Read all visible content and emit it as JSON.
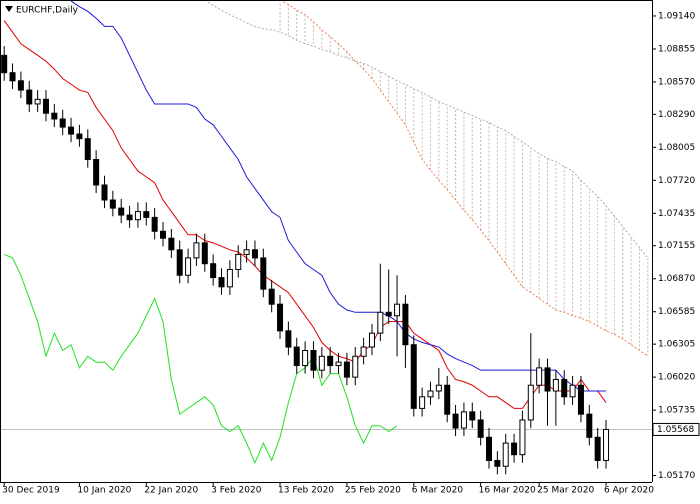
{
  "chart_data": {
    "type": "candlestick",
    "title": "EURCHF,Daily",
    "categories": [
      "30 Dec 2019",
      null,
      null,
      null,
      null,
      null,
      null,
      null,
      null,
      "10 Jan 2020",
      null,
      null,
      null,
      null,
      null,
      null,
      null,
      "22 Jan 2020",
      null,
      null,
      null,
      null,
      null,
      null,
      null,
      "3 Feb 2020",
      null,
      null,
      null,
      null,
      null,
      null,
      null,
      "13 Feb 2020",
      null,
      null,
      null,
      null,
      null,
      null,
      null,
      "25 Feb 2020",
      null,
      null,
      null,
      null,
      null,
      null,
      null,
      "6 Mar 2020",
      null,
      null,
      null,
      null,
      null,
      null,
      null,
      "16 Mar 2020",
      null,
      null,
      null,
      null,
      null,
      null,
      "25 Mar 2020",
      null,
      null,
      null,
      null,
      null,
      null,
      null,
      "6 Apr 2020",
      null,
      null,
      null,
      null,
      null
    ],
    "open": [
      1.088,
      1.0865,
      1.0858,
      1.085,
      1.0838,
      1.0842,
      1.083,
      1.0825,
      1.0818,
      1.0812,
      1.0808,
      1.079,
      1.0768,
      1.0755,
      1.0748,
      1.0742,
      1.0738,
      1.0745,
      1.074,
      1.0728,
      1.0722,
      1.0712,
      1.069,
      1.0705,
      1.0718,
      1.07,
      1.0688,
      1.068,
      1.0695,
      1.0708,
      1.0712,
      1.0705,
      1.0678,
      1.0665,
      1.0642,
      1.0628,
      1.0612,
      1.0625,
      1.0608,
      1.062,
      1.0612,
      1.0615,
      1.0602,
      1.062,
      1.0628,
      1.064,
      1.0658,
      1.0655,
      1.0665,
      1.063,
      1.0575,
      1.0585,
      1.059,
      1.0595,
      1.057,
      1.0558,
      1.0572,
      1.0565,
      1.055,
      1.053,
      1.0525,
      1.0545,
      1.0535,
      1.0565,
      1.0595,
      1.061,
      1.059,
      1.06,
      1.0585,
      1.0595,
      1.057,
      1.055,
      1.053,
      null,
      null,
      null,
      null,
      null
    ],
    "high": [
      1.0888,
      1.0873,
      1.0866,
      1.0858,
      1.085,
      1.085,
      1.0838,
      1.0833,
      1.0826,
      1.082,
      1.0816,
      1.0798,
      1.0776,
      1.0763,
      1.0756,
      1.075,
      1.0753,
      1.0753,
      1.0748,
      1.0736,
      1.073,
      1.072,
      1.0713,
      1.0726,
      1.0726,
      1.0708,
      1.0696,
      1.0703,
      1.0716,
      1.072,
      1.072,
      1.0713,
      1.0686,
      1.0673,
      1.065,
      1.0636,
      1.0633,
      1.0633,
      1.0628,
      1.0628,
      1.0623,
      1.0623,
      1.0628,
      1.0636,
      1.0648,
      1.07,
      1.0695,
      1.069,
      1.0673,
      1.0638,
      1.0593,
      1.0598,
      1.061,
      1.0603,
      1.0578,
      1.058,
      1.058,
      1.0573,
      1.0558,
      1.0538,
      1.0553,
      1.0553,
      1.0573,
      1.064,
      1.0618,
      1.0618,
      1.0608,
      1.0608,
      1.0603,
      1.0603,
      1.0578,
      1.0558,
      1.0565,
      null,
      null,
      null,
      null,
      null
    ],
    "low": [
      1.0858,
      1.0851,
      1.0843,
      1.0831,
      1.0831,
      1.0823,
      1.0818,
      1.0811,
      1.0805,
      1.0801,
      1.0783,
      1.0761,
      1.0748,
      1.0741,
      1.0735,
      1.0731,
      1.0731,
      1.0733,
      1.0721,
      1.0715,
      1.0705,
      1.0683,
      1.0683,
      1.0698,
      1.0693,
      1.0681,
      1.0673,
      1.0673,
      1.0688,
      1.0701,
      1.0698,
      1.0671,
      1.0658,
      1.0635,
      1.0621,
      1.0605,
      1.0605,
      1.0601,
      1.0601,
      1.0605,
      1.0605,
      1.0595,
      1.0595,
      1.0613,
      1.0621,
      1.0633,
      1.0648,
      1.062,
      1.061,
      1.0568,
      1.0568,
      1.0578,
      1.0583,
      1.0563,
      1.0551,
      1.0551,
      1.0558,
      1.0543,
      1.0523,
      1.0518,
      1.0518,
      1.0528,
      1.0528,
      1.0558,
      1.0588,
      1.056,
      1.056,
      1.0578,
      1.0578,
      1.0563,
      1.0543,
      1.0523,
      1.0523,
      null,
      null,
      null,
      null,
      null
    ],
    "close": [
      1.0865,
      1.0858,
      1.085,
      1.0838,
      1.0842,
      1.083,
      1.0825,
      1.0818,
      1.0812,
      1.0808,
      1.079,
      1.0768,
      1.0755,
      1.0748,
      1.0742,
      1.0738,
      1.0745,
      1.074,
      1.0728,
      1.0722,
      1.0712,
      1.069,
      1.0705,
      1.0718,
      1.07,
      1.0688,
      1.068,
      1.0695,
      1.0708,
      1.0712,
      1.0705,
      1.0678,
      1.0665,
      1.0642,
      1.0628,
      1.0612,
      1.0625,
      1.0608,
      1.062,
      1.0612,
      1.0615,
      1.0602,
      1.062,
      1.0628,
      1.064,
      1.0658,
      1.0655,
      1.0665,
      1.063,
      1.0575,
      1.0585,
      1.059,
      1.0595,
      1.057,
      1.0558,
      1.0572,
      1.0565,
      1.055,
      1.053,
      1.0525,
      1.0545,
      1.0535,
      1.0565,
      1.0595,
      1.061,
      1.059,
      1.06,
      1.0585,
      1.0595,
      1.057,
      1.055,
      1.053,
      1.05568,
      null,
      null,
      null,
      null,
      null
    ],
    "lines": [
      {
        "color": "#e00000",
        "style": "solid",
        "values": [
          1.091,
          1.09,
          1.089,
          1.0885,
          1.088,
          1.0875,
          1.0868,
          1.086,
          1.0855,
          1.085,
          1.0848,
          1.0835,
          1.0825,
          1.0815,
          1.08,
          1.079,
          1.078,
          1.0775,
          1.077,
          1.0755,
          1.0745,
          1.0735,
          1.0725,
          1.0725,
          1.072,
          1.0718,
          1.0715,
          1.0712,
          1.071,
          1.0705,
          1.0698,
          1.069,
          1.0685,
          1.068,
          1.0675,
          1.0665,
          1.0655,
          1.0645,
          1.0632,
          1.0625,
          1.062,
          1.0618,
          1.0615,
          1.0625,
          1.063,
          1.0645,
          1.065,
          1.065,
          1.065,
          1.064,
          1.0635,
          1.063,
          1.0625,
          1.061,
          1.06,
          1.0598,
          1.0595,
          1.059,
          1.0585,
          1.0585,
          1.058,
          1.0575,
          1.0575,
          1.0585,
          1.0595,
          1.0595,
          1.059,
          1.059,
          1.059,
          1.06,
          1.059,
          1.059,
          1.058,
          null,
          null,
          null,
          null,
          null
        ]
      },
      {
        "color": "#1a1ad8",
        "style": "solid",
        "values": [
          null,
          null,
          null,
          null,
          null,
          null,
          null,
          null,
          1.0927,
          1.0922,
          1.0918,
          1.0912,
          1.0905,
          1.0905,
          1.0895,
          1.088,
          1.0865,
          1.085,
          1.0838,
          1.0838,
          1.0838,
          1.0838,
          1.0838,
          1.0835,
          1.0825,
          1.082,
          1.081,
          1.08,
          1.079,
          1.0775,
          1.0765,
          1.0755,
          1.0745,
          1.074,
          1.072,
          1.071,
          1.07,
          1.0695,
          1.069,
          1.0675,
          1.0665,
          1.066,
          1.0658,
          1.0658,
          1.0658,
          1.0658,
          1.0655,
          1.065,
          1.064,
          1.0635,
          1.0632,
          1.063,
          1.0628,
          1.0622,
          1.0618,
          1.0615,
          1.0612,
          1.0608,
          1.0608,
          1.0608,
          1.0608,
          1.0608,
          1.0608,
          1.0608,
          1.0608,
          1.0608,
          1.0608,
          1.06,
          1.0595,
          1.059,
          1.059,
          1.059,
          1.059,
          null,
          null,
          null,
          null,
          null
        ]
      },
      {
        "color": "#22e022",
        "style": "solid",
        "values": [
          1.0708,
          1.0705,
          1.069,
          1.067,
          1.065,
          1.062,
          1.064,
          1.0625,
          1.063,
          1.061,
          1.062,
          1.0615,
          1.0615,
          1.0608,
          1.062,
          1.063,
          1.064,
          1.0655,
          1.067,
          1.065,
          1.06,
          1.057,
          1.0575,
          1.058,
          1.0585,
          1.0578,
          1.056,
          1.0555,
          1.056,
          1.0545,
          1.0528,
          1.0545,
          1.053,
          1.055,
          1.058,
          1.0605,
          1.061,
          1.062,
          1.0595,
          1.0605,
          1.0605,
          1.0585,
          1.056,
          1.0545,
          1.056,
          1.056,
          1.0555,
          1.056,
          null,
          null,
          null,
          null,
          null,
          null,
          null,
          null,
          null,
          null,
          null,
          null,
          null,
          null,
          null,
          null,
          null,
          null,
          null,
          null,
          null,
          null,
          null,
          null,
          null,
          null,
          null,
          null,
          null,
          null
        ]
      }
    ],
    "cloud": {
      "fill_color": "#c8b4b4",
      "span_a": {
        "color": "#f08050",
        "style": "dotted",
        "values": [
          null,
          null,
          null,
          null,
          null,
          null,
          null,
          null,
          null,
          null,
          null,
          null,
          null,
          null,
          null,
          null,
          null,
          null,
          null,
          null,
          null,
          null,
          null,
          null,
          null,
          null,
          null,
          null,
          null,
          null,
          null,
          null,
          null,
          1.0928,
          1.0924,
          1.0919,
          1.0915,
          1.0909,
          1.0902,
          1.0896,
          1.089,
          1.0883,
          1.0875,
          1.0868,
          1.086,
          1.085,
          1.084,
          1.083,
          1.082,
          1.0805,
          1.079,
          1.0781,
          1.0772,
          1.0764,
          1.0755,
          1.0746,
          1.0738,
          1.0729,
          1.072,
          1.071,
          1.07,
          1.069,
          1.068,
          1.0675,
          1.067,
          1.0665,
          1.066,
          1.0658,
          1.0655,
          1.0653,
          1.065,
          1.0646,
          1.0642,
          1.0639,
          1.0635,
          1.063,
          1.0625,
          1.062
        ]
      },
      "span_b": {
        "color": "#b0a8a8",
        "style": "dotted",
        "values": [
          null,
          null,
          null,
          null,
          null,
          null,
          null,
          null,
          null,
          null,
          null,
          null,
          null,
          null,
          null,
          null,
          null,
          null,
          null,
          null,
          null,
          null,
          null,
          null,
          1.0928,
          1.0923,
          1.0919,
          1.0915,
          1.0912,
          1.0908,
          1.0905,
          1.0903,
          1.0902,
          1.09,
          1.0897,
          1.0893,
          1.089,
          1.0888,
          1.0885,
          1.0883,
          1.088,
          1.0878,
          1.0875,
          1.0873,
          1.087,
          1.0866,
          1.0862,
          1.0858,
          1.0855,
          1.0851,
          1.0848,
          1.0844,
          1.084,
          1.0837,
          1.0834,
          1.0831,
          1.0828,
          1.0825,
          1.0822,
          1.0818,
          1.0815,
          1.081,
          1.0805,
          1.08,
          1.0795,
          1.0791,
          1.0788,
          1.0784,
          1.078,
          1.0772,
          1.0765,
          1.0758,
          1.075,
          1.0741,
          1.0732,
          1.0723,
          1.0714,
          1.0705
        ]
      }
    },
    "current_price": 1.05568,
    "ylim": [
      1.05114,
      1.09278
    ],
    "yticks": [
      {
        "value": 1.0914,
        "label": "1.09140"
      },
      1.08855,
      {
        "value": 1.0857,
        "label": "1.08570"
      },
      {
        "value": 1.0829,
        "label": "1.08290"
      },
      1.08005,
      {
        "value": 1.0772,
        "label": "1.07720"
      },
      1.07435,
      1.07155,
      {
        "value": 1.0687,
        "label": "1.06870"
      },
      1.06585,
      1.06305,
      {
        "value": 1.0602,
        "label": "1.06020"
      },
      1.05735,
      {
        "value": 1.0517,
        "label": "1.05170"
      }
    ]
  }
}
